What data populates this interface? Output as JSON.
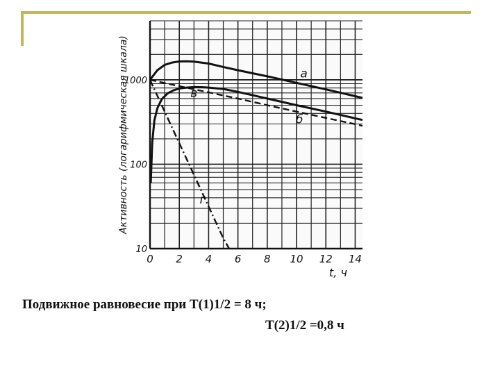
{
  "slide": {
    "caption_line1": "Подвижное равновесие при Т(1)1/2 = 8 ч;",
    "caption_line2": "Т(2)1/2 =0,8 ч",
    "accent_color": "#c8b45a"
  },
  "chart_data": {
    "type": "line",
    "title": "",
    "xlabel": "t, ч",
    "ylabel": "Активность (логарифмическая шкала)",
    "x_ticks": [
      "0",
      "2",
      "4",
      "6",
      "8",
      "10",
      "12",
      "14"
    ],
    "y_ticks": [
      "10",
      "100",
      "1000"
    ],
    "xlim": [
      0,
      14.5
    ],
    "ylim": [
      10,
      5000
    ],
    "y_scale": "log",
    "grid": true,
    "series": [
      {
        "name": "а",
        "style": "solid",
        "x": [
          0,
          0.5,
          1,
          1.5,
          2,
          2.5,
          3,
          4,
          5,
          6,
          8,
          10,
          12,
          14,
          14.5
        ],
        "y": [
          1000,
          1300,
          1500,
          1600,
          1650,
          1660,
          1640,
          1560,
          1420,
          1300,
          1100,
          920,
          770,
          640,
          610
        ]
      },
      {
        "name": "б",
        "style": "dashed",
        "x": [
          0,
          2,
          4,
          6,
          8,
          10,
          12,
          14,
          14.5
        ],
        "y": [
          1000,
          840,
          710,
          600,
          500,
          420,
          354,
          298,
          285
        ]
      },
      {
        "name": "в",
        "style": "solid",
        "x": [
          0.05,
          0.15,
          0.3,
          0.5,
          0.8,
          1.2,
          1.6,
          2,
          2.5,
          3,
          3.5,
          4,
          5,
          6,
          8,
          10,
          12,
          14,
          14.5
        ],
        "y": [
          60,
          180,
          330,
          460,
          590,
          690,
          750,
          790,
          810,
          820,
          818,
          810,
          780,
          720,
          600,
          500,
          420,
          350,
          335
        ]
      },
      {
        "name": "г",
        "style": "dashdot",
        "x": [
          0,
          1,
          2,
          3,
          4,
          5,
          5.4
        ],
        "y": [
          1000,
          420,
          177,
          75,
          31.5,
          13.3,
          10
        ]
      }
    ]
  }
}
